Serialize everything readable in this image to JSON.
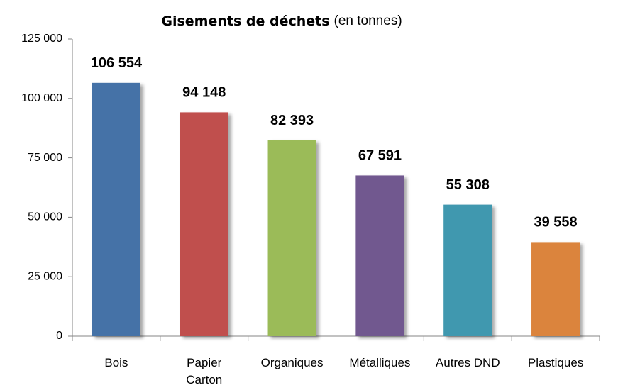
{
  "chart_data": {
    "type": "bar",
    "title": "Gisements de déchets",
    "title_unit": "(en tonnes)",
    "categories": [
      "Bois",
      "Papier\nCarton",
      "Organiques",
      "Métalliques",
      "Autres DND",
      "Plastiques"
    ],
    "values": [
      106554,
      94148,
      82393,
      67591,
      55308,
      39558
    ],
    "value_labels": [
      "106 554",
      "94 148",
      "82 393",
      "67 591",
      "55 308",
      "39 558"
    ],
    "colors": [
      "#4572a7",
      "#c0504d",
      "#9bbb59",
      "#71588f",
      "#4198af",
      "#db843d"
    ],
    "ylim": [
      0,
      125000
    ],
    "yticks": [
      0,
      {
        "value": 25000,
        "label": "25 000"
      },
      {
        "value": 50000,
        "label": "50 000"
      },
      {
        "value": 75000,
        "label": "75 000"
      },
      {
        "value": 100000,
        "label": "100 000"
      },
      {
        "value": 125000,
        "label": "125 000"
      }
    ],
    "grid": false
  }
}
